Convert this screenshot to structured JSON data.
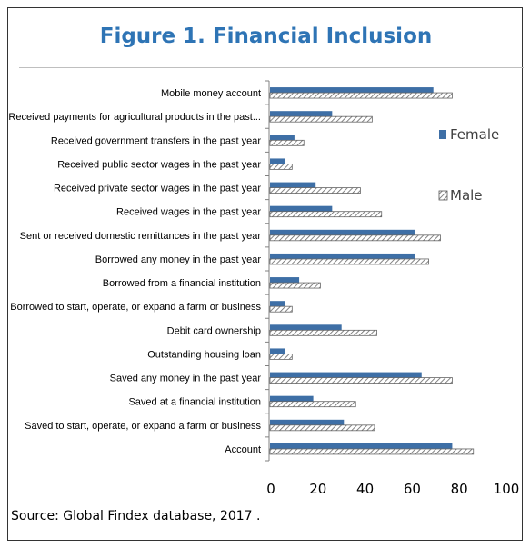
{
  "figure": {
    "title": "Figure 1. Financial Inclusion",
    "source": "Source: Global Findex database, 2017 ."
  },
  "colors": {
    "female": "#3e6fa6",
    "male_hatch": "#666666",
    "title": "#2e74b5"
  },
  "chart_data": {
    "type": "bar",
    "orientation": "horizontal",
    "categories": [
      "Mobile money account",
      "Received payments for agricultural products in the past...",
      "Received government transfers in the past year",
      "Received public sector wages in the past year",
      "Received private sector wages in the past year",
      "Received wages in the past year",
      "Sent or received domestic remittances in the past year",
      "Borrowed any money in the past year",
      "Borrowed from a financial institution",
      "Borrowed to start, operate, or expand a farm or business",
      "Debit card ownership",
      "Outstanding housing loan",
      "Saved any money in the past year",
      "Saved at a financial institution",
      "Saved to start, operate, or expand a farm or business",
      "Account"
    ],
    "series": [
      {
        "name": "Female",
        "values": [
          69,
          26,
          10,
          6,
          19,
          26,
          61,
          61,
          12,
          6,
          30,
          6,
          64,
          18,
          31,
          77
        ]
      },
      {
        "name": "Male",
        "values": [
          77,
          43,
          14,
          9,
          38,
          47,
          72,
          67,
          21,
          9,
          45,
          9,
          77,
          36,
          44,
          86
        ]
      }
    ],
    "xlim": [
      0,
      100
    ],
    "xticks": [
      "0",
      "20",
      "40",
      "60",
      "80",
      "100"
    ],
    "legend": {
      "position": "right"
    },
    "grid": false
  }
}
